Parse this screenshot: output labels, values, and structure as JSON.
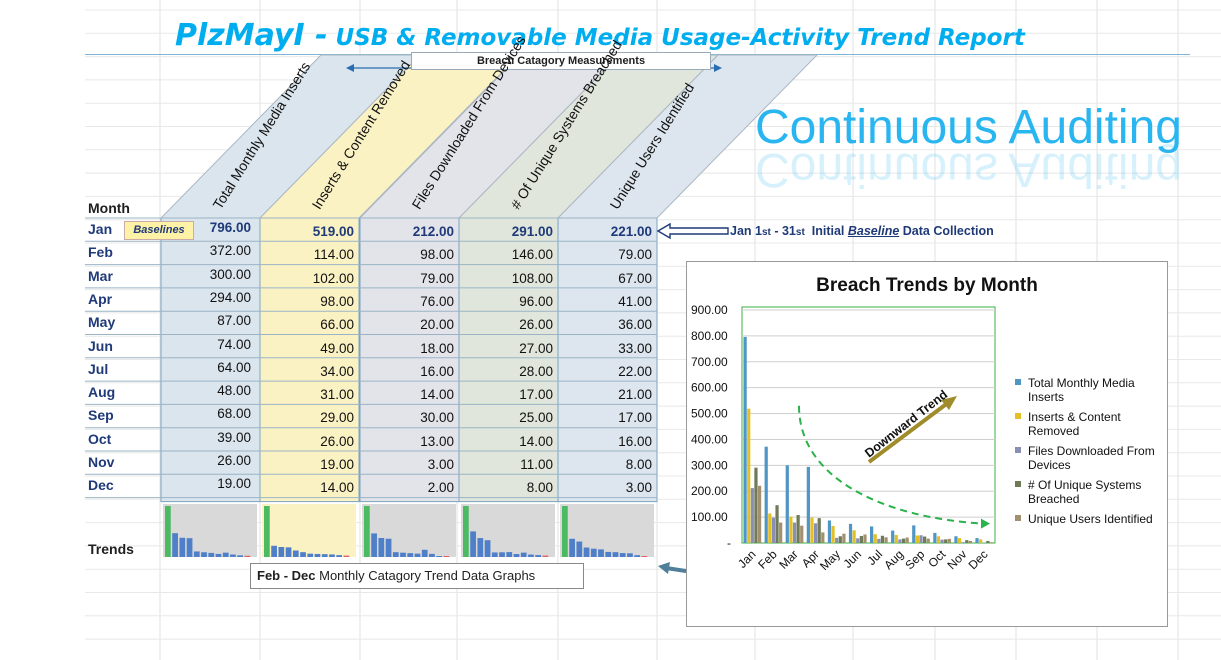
{
  "header": {
    "brand": "PlzMayI -",
    "title": "USB & Removable Media Usage-Activity Trend Report",
    "continuous_auditing": "Continuous Auditing",
    "breach_measurements": "Breach Catagory Measurements"
  },
  "table": {
    "month_header": "Month",
    "columns": [
      "Total Monthly Media Inserts",
      "Inserts & Content Removed",
      "Files Downloaded From Devices",
      "# Of Unique Systems Breached",
      "Unique Users Identified"
    ],
    "column_colors": [
      "#dbe5ee",
      "#fbf2c4",
      "#e3e3ea",
      "#e0e6db",
      "#dde6ef"
    ],
    "baselines_tag": "Baselines",
    "rows": [
      {
        "month": "Jan",
        "values": [
          "796.00",
          "519.00",
          "212.00",
          "291.00",
          "221.00"
        ]
      },
      {
        "month": "Feb",
        "values": [
          "372.00",
          "114.00",
          "98.00",
          "146.00",
          "79.00"
        ]
      },
      {
        "month": "Mar",
        "values": [
          "300.00",
          "102.00",
          "79.00",
          "108.00",
          "67.00"
        ]
      },
      {
        "month": "Apr",
        "values": [
          "294.00",
          "98.00",
          "76.00",
          "96.00",
          "41.00"
        ]
      },
      {
        "month": "May",
        "values": [
          "87.00",
          "66.00",
          "20.00",
          "26.00",
          "36.00"
        ]
      },
      {
        "month": "Jun",
        "values": [
          "74.00",
          "49.00",
          "18.00",
          "27.00",
          "33.00"
        ]
      },
      {
        "month": "Jul",
        "values": [
          "64.00",
          "34.00",
          "16.00",
          "28.00",
          "22.00"
        ]
      },
      {
        "month": "Aug",
        "values": [
          "48.00",
          "31.00",
          "14.00",
          "17.00",
          "21.00"
        ]
      },
      {
        "month": "Sep",
        "values": [
          "68.00",
          "29.00",
          "30.00",
          "25.00",
          "17.00"
        ]
      },
      {
        "month": "Oct",
        "values": [
          "39.00",
          "26.00",
          "13.00",
          "14.00",
          "16.00"
        ]
      },
      {
        "month": "Nov",
        "values": [
          "26.00",
          "19.00",
          "3.00",
          "11.00",
          "8.00"
        ]
      },
      {
        "month": "Dec",
        "values": [
          "19.00",
          "14.00",
          "2.00",
          "8.00",
          "3.00"
        ]
      }
    ]
  },
  "notes": {
    "jan_prefix": "Jan 1",
    "jan_st1": "st",
    "jan_mid": " - 31",
    "jan_st2": "st",
    "jan_initial": "  Initial ",
    "jan_baseline": "Baseline",
    "jan_suffix": " Data Collection",
    "trends_label": "Trends",
    "feb_dec_bold": "Feb - Dec",
    "feb_dec_rest": " Monthly Catagory Trend Data Graphs"
  },
  "chart_data": {
    "type": "bar",
    "title": "Breach Trends by Month",
    "categories": [
      "Jan",
      "Feb",
      "Mar",
      "Apr",
      "May",
      "Jun",
      "Jul",
      "Aug",
      "Sep",
      "Oct",
      "Nov",
      "Dec"
    ],
    "series": [
      {
        "name": "Total Monthly Media Inserts",
        "color": "#4f95c5",
        "values": [
          796,
          372,
          300,
          294,
          87,
          74,
          64,
          48,
          68,
          39,
          26,
          19
        ]
      },
      {
        "name": "Inserts  & Content Removed",
        "color": "#e3c026",
        "values": [
          519,
          114,
          102,
          98,
          66,
          49,
          34,
          31,
          29,
          26,
          19,
          14
        ]
      },
      {
        "name": "Files Downloaded From Devices",
        "color": "#8a8fb4",
        "values": [
          212,
          98,
          79,
          76,
          20,
          18,
          16,
          14,
          30,
          13,
          3,
          2
        ]
      },
      {
        "name": "# Of Unique Systems Breached",
        "color": "#6e7a58",
        "values": [
          291,
          146,
          108,
          96,
          26,
          27,
          28,
          17,
          25,
          14,
          11,
          8
        ]
      },
      {
        "name": "Unique Users Identified",
        "color": "#a39070",
        "values": [
          221,
          79,
          67,
          41,
          36,
          33,
          22,
          21,
          17,
          16,
          8,
          3
        ]
      }
    ],
    "ylim": [
      0,
      900
    ],
    "yticks": [
      "900.00",
      "800.00",
      "700.00",
      "600.00",
      "500.00",
      "400.00",
      "300.00",
      "200.00",
      "100.00",
      "-"
    ],
    "annotation": "Downward Trend",
    "legend": "right",
    "grid": true
  },
  "sparkline_colors": {
    "first": "#4cb963",
    "rest": "#4f7fc8",
    "last": "#e06060"
  }
}
